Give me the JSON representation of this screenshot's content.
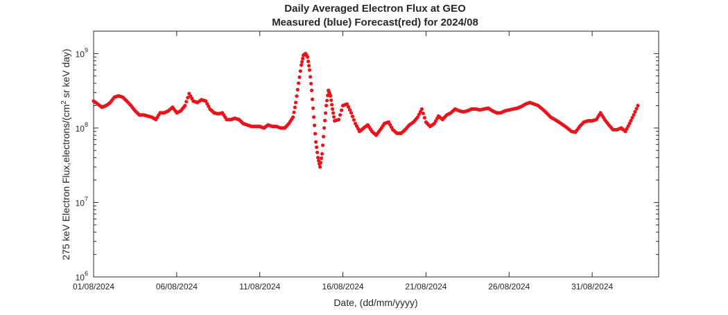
{
  "chart_data": {
    "type": "scatter",
    "title": "Daily Averaged Electron Flux at GEO",
    "subtitle": "Measured (blue) Forecast(red) for 2024/08",
    "xlabel": "Date, (dd/mm/yyyy)",
    "ylabel_prefix": "275 keV Electron Flux,electrons/(cm",
    "ylabel_sup": "2",
    "ylabel_suffix": " sr keV day)",
    "y_scale": "log",
    "xlim": [
      "2024-08-01",
      "2024-09-04"
    ],
    "ylim": [
      1000000,
      2000000000
    ],
    "x_ticks": [
      {
        "date": "2024-08-01",
        "label": "01/08/2024"
      },
      {
        "date": "2024-08-06",
        "label": "06/08/2024"
      },
      {
        "date": "2024-08-11",
        "label": "11/08/2024"
      },
      {
        "date": "2024-08-16",
        "label": "16/08/2024"
      },
      {
        "date": "2024-08-21",
        "label": "21/08/2024"
      },
      {
        "date": "2024-08-26",
        "label": "26/08/2024"
      },
      {
        "date": "2024-08-31",
        "label": "31/08/2024"
      }
    ],
    "y_ticks": [
      {
        "value": 1000000,
        "base": "10",
        "exp": "6"
      },
      {
        "value": 10000000,
        "base": "10",
        "exp": "7"
      },
      {
        "value": 100000000,
        "base": "10",
        "exp": "8"
      },
      {
        "value": 1000000000,
        "base": "10",
        "exp": "9"
      }
    ],
    "grid": false,
    "series": [
      {
        "color": "#e8141b",
        "points": [
          [
            "2024-08-01T00:00",
            230000000.0
          ],
          [
            "2024-08-01T06:00",
            210000000.0
          ],
          [
            "2024-08-01T12:00",
            190000000.0
          ],
          [
            "2024-08-01T18:00",
            200000000.0
          ],
          [
            "2024-08-02T00:00",
            220000000.0
          ],
          [
            "2024-08-02T06:00",
            260000000.0
          ],
          [
            "2024-08-02T12:00",
            270000000.0
          ],
          [
            "2024-08-02T18:00",
            260000000.0
          ],
          [
            "2024-08-03T00:00",
            230000000.0
          ],
          [
            "2024-08-03T06:00",
            200000000.0
          ],
          [
            "2024-08-03T12:00",
            170000000.0
          ],
          [
            "2024-08-03T18:00",
            150000000.0
          ],
          [
            "2024-08-04T00:00",
            150000000.0
          ],
          [
            "2024-08-04T06:00",
            145000000.0
          ],
          [
            "2024-08-04T12:00",
            140000000.0
          ],
          [
            "2024-08-04T18:00",
            130000000.0
          ],
          [
            "2024-08-05T00:00",
            160000000.0
          ],
          [
            "2024-08-05T06:00",
            160000000.0
          ],
          [
            "2024-08-05T12:00",
            170000000.0
          ],
          [
            "2024-08-05T18:00",
            190000000.0
          ],
          [
            "2024-08-06T00:00",
            160000000.0
          ],
          [
            "2024-08-06T06:00",
            170000000.0
          ],
          [
            "2024-08-06T12:00",
            200000000.0
          ],
          [
            "2024-08-06T18:00",
            290000000.0
          ],
          [
            "2024-08-07T00:00",
            230000000.0
          ],
          [
            "2024-08-07T06:00",
            220000000.0
          ],
          [
            "2024-08-07T12:00",
            240000000.0
          ],
          [
            "2024-08-07T18:00",
            230000000.0
          ],
          [
            "2024-08-08T00:00",
            180000000.0
          ],
          [
            "2024-08-08T06:00",
            160000000.0
          ],
          [
            "2024-08-08T12:00",
            155000000.0
          ],
          [
            "2024-08-08T18:00",
            160000000.0
          ],
          [
            "2024-08-09T00:00",
            130000000.0
          ],
          [
            "2024-08-09T06:00",
            130000000.0
          ],
          [
            "2024-08-09T12:00",
            135000000.0
          ],
          [
            "2024-08-09T18:00",
            130000000.0
          ],
          [
            "2024-08-10T00:00",
            115000000.0
          ],
          [
            "2024-08-10T06:00",
            110000000.0
          ],
          [
            "2024-08-10T12:00",
            105000000.0
          ],
          [
            "2024-08-10T18:00",
            105000000.0
          ],
          [
            "2024-08-11T00:00",
            105000000.0
          ],
          [
            "2024-08-11T06:00",
            100000000.0
          ],
          [
            "2024-08-11T12:00",
            110000000.0
          ],
          [
            "2024-08-11T18:00",
            105000000.0
          ],
          [
            "2024-08-12T00:00",
            105000000.0
          ],
          [
            "2024-08-12T06:00",
            100000000.0
          ],
          [
            "2024-08-12T12:00",
            100000000.0
          ],
          [
            "2024-08-12T18:00",
            115000000.0
          ],
          [
            "2024-08-13T00:00",
            140000000.0
          ],
          [
            "2024-08-13T04:00",
            220000000.0
          ],
          [
            "2024-08-13T08:00",
            400000000.0
          ],
          [
            "2024-08-13T12:00",
            700000000.0
          ],
          [
            "2024-08-13T15:00",
            950000000.0
          ],
          [
            "2024-08-13T18:00",
            1000000000.0
          ],
          [
            "2024-08-13T21:00",
            900000000.0
          ],
          [
            "2024-08-14T00:00",
            600000000.0
          ],
          [
            "2024-08-14T03:00",
            320000000.0
          ],
          [
            "2024-08-14T06:00",
            140000000.0
          ],
          [
            "2024-08-14T09:00",
            65000000.0
          ],
          [
            "2024-08-14T12:00",
            40000000.0
          ],
          [
            "2024-08-14T15:00",
            30000000.0
          ],
          [
            "2024-08-14T18:00",
            45000000.0
          ],
          [
            "2024-08-14T21:00",
            100000000.0
          ],
          [
            "2024-08-15T00:00",
            200000000.0
          ],
          [
            "2024-08-15T03:00",
            320000000.0
          ],
          [
            "2024-08-15T06:00",
            270000000.0
          ],
          [
            "2024-08-15T09:00",
            180000000.0
          ],
          [
            "2024-08-15T12:00",
            125000000.0
          ],
          [
            "2024-08-15T18:00",
            130000000.0
          ],
          [
            "2024-08-16T00:00",
            200000000.0
          ],
          [
            "2024-08-16T06:00",
            210000000.0
          ],
          [
            "2024-08-16T12:00",
            160000000.0
          ],
          [
            "2024-08-16T18:00",
            115000000.0
          ],
          [
            "2024-08-17T00:00",
            90000000.0
          ],
          [
            "2024-08-17T06:00",
            100000000.0
          ],
          [
            "2024-08-17T12:00",
            110000000.0
          ],
          [
            "2024-08-17T18:00",
            90000000.0
          ],
          [
            "2024-08-18T00:00",
            80000000.0
          ],
          [
            "2024-08-18T06:00",
            95000000.0
          ],
          [
            "2024-08-18T12:00",
            115000000.0
          ],
          [
            "2024-08-18T18:00",
            120000000.0
          ],
          [
            "2024-08-19T00:00",
            95000000.0
          ],
          [
            "2024-08-19T06:00",
            85000000.0
          ],
          [
            "2024-08-19T12:00",
            85000000.0
          ],
          [
            "2024-08-19T18:00",
            95000000.0
          ],
          [
            "2024-08-20T00:00",
            110000000.0
          ],
          [
            "2024-08-20T06:00",
            120000000.0
          ],
          [
            "2024-08-20T12:00",
            140000000.0
          ],
          [
            "2024-08-20T18:00",
            180000000.0
          ],
          [
            "2024-08-21T00:00",
            120000000.0
          ],
          [
            "2024-08-21T06:00",
            105000000.0
          ],
          [
            "2024-08-21T12:00",
            115000000.0
          ],
          [
            "2024-08-21T18:00",
            145000000.0
          ],
          [
            "2024-08-22T00:00",
            130000000.0
          ],
          [
            "2024-08-22T06:00",
            150000000.0
          ],
          [
            "2024-08-22T12:00",
            160000000.0
          ],
          [
            "2024-08-22T18:00",
            180000000.0
          ],
          [
            "2024-08-23T00:00",
            170000000.0
          ],
          [
            "2024-08-23T06:00",
            165000000.0
          ],
          [
            "2024-08-23T12:00",
            170000000.0
          ],
          [
            "2024-08-23T18:00",
            180000000.0
          ],
          [
            "2024-08-24T00:00",
            180000000.0
          ],
          [
            "2024-08-24T06:00",
            175000000.0
          ],
          [
            "2024-08-24T12:00",
            180000000.0
          ],
          [
            "2024-08-24T18:00",
            185000000.0
          ],
          [
            "2024-08-25T00:00",
            170000000.0
          ],
          [
            "2024-08-25T06:00",
            160000000.0
          ],
          [
            "2024-08-25T12:00",
            160000000.0
          ],
          [
            "2024-08-25T18:00",
            170000000.0
          ],
          [
            "2024-08-26T00:00",
            175000000.0
          ],
          [
            "2024-08-26T06:00",
            180000000.0
          ],
          [
            "2024-08-26T12:00",
            185000000.0
          ],
          [
            "2024-08-26T18:00",
            195000000.0
          ],
          [
            "2024-08-27T00:00",
            210000000.0
          ],
          [
            "2024-08-27T06:00",
            220000000.0
          ],
          [
            "2024-08-27T12:00",
            210000000.0
          ],
          [
            "2024-08-27T18:00",
            200000000.0
          ],
          [
            "2024-08-28T00:00",
            180000000.0
          ],
          [
            "2024-08-28T06:00",
            160000000.0
          ],
          [
            "2024-08-28T12:00",
            140000000.0
          ],
          [
            "2024-08-28T18:00",
            130000000.0
          ],
          [
            "2024-08-29T00:00",
            120000000.0
          ],
          [
            "2024-08-29T06:00",
            110000000.0
          ],
          [
            "2024-08-29T12:00",
            100000000.0
          ],
          [
            "2024-08-29T18:00",
            90000000.0
          ],
          [
            "2024-08-30T00:00",
            88000000.0
          ],
          [
            "2024-08-30T06:00",
            105000000.0
          ],
          [
            "2024-08-30T12:00",
            120000000.0
          ],
          [
            "2024-08-30T18:00",
            125000000.0
          ],
          [
            "2024-08-31T00:00",
            125000000.0
          ],
          [
            "2024-08-31T06:00",
            130000000.0
          ],
          [
            "2024-08-31T12:00",
            160000000.0
          ],
          [
            "2024-08-31T18:00",
            130000000.0
          ],
          [
            "2024-09-01T00:00",
            110000000.0
          ],
          [
            "2024-09-01T06:00",
            95000000.0
          ],
          [
            "2024-09-01T12:00",
            95000000.0
          ],
          [
            "2024-09-01T18:00",
            100000000.0
          ],
          [
            "2024-09-02T00:00",
            90000000.0
          ],
          [
            "2024-09-02T06:00",
            115000000.0
          ],
          [
            "2024-09-02T12:00",
            150000000.0
          ],
          [
            "2024-09-02T18:00",
            200000000.0
          ]
        ]
      }
    ]
  }
}
